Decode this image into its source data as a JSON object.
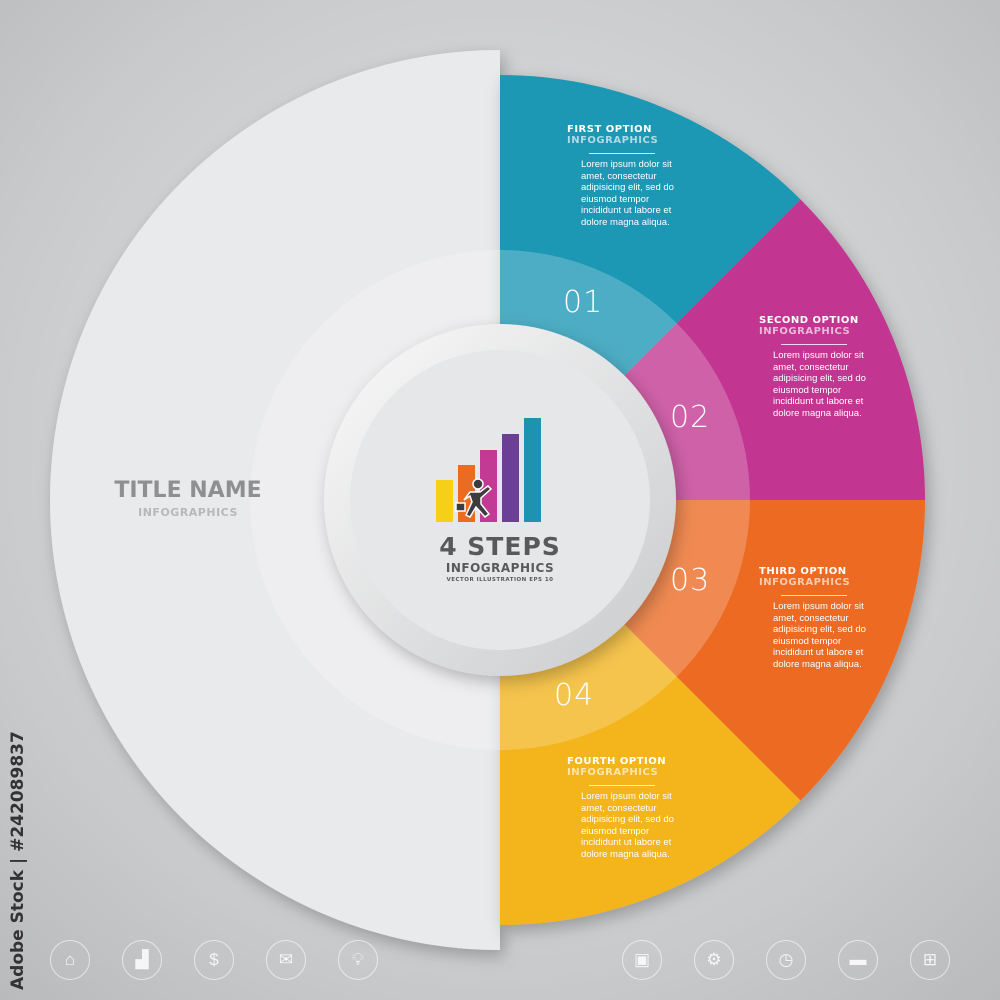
{
  "title": {
    "name": "TITLE NAME",
    "subtitle": "INFOGRAPHICS"
  },
  "center": {
    "heading": "4 STEPS",
    "subheading": "INFOGRAPHICS",
    "caption": "VECTOR ILLUSTRATION EPS 10",
    "bar_colors": [
      "#f5d018",
      "#ea6b24",
      "#c23a93",
      "#6b3f96",
      "#1e93b0"
    ]
  },
  "options": [
    {
      "number": "01",
      "title": "FIRST OPTION",
      "subtitle": "INFOGRAPHICS",
      "body": "Lorem ipsum dolor sit amet, consectetur adipisicing elit, sed do eiusmod tempor incididunt ut labore et dolore magna aliqua.",
      "color": "#1e97b4"
    },
    {
      "number": "02",
      "title": "SECOND OPTION",
      "subtitle": "INFOGRAPHICS",
      "body": "Lorem ipsum dolor sit amet, consectetur adipisicing elit, sed do eiusmod tempor incididunt ut labore et dolore magna aliqua.",
      "color": "#c23590"
    },
    {
      "number": "03",
      "title": "THIRD OPTION",
      "subtitle": "INFOGRAPHICS",
      "body": "Lorem ipsum dolor sit amet, consectetur adipisicing elit, sed do eiusmod tempor incididunt ut labore et dolore magna aliqua.",
      "color": "#ec6a23"
    },
    {
      "number": "04",
      "title": "FOURTH OPTION",
      "subtitle": "INFOGRAPHICS",
      "body": "Lorem ipsum dolor sit amet, consectetur adipisicing elit, sed do eiusmod tempor incididunt ut labore et dolore magna aliqua.",
      "color": "#f3b41c"
    }
  ],
  "icons": [
    "home-icon",
    "bar-chart-icon",
    "money-hand-icon",
    "mail-icon",
    "lightbulb-icon",
    "cash-icon",
    "gears-icon",
    "clock-icon",
    "chat-icon",
    "hierarchy-icon"
  ],
  "watermark": "Adobe Stock | #242089837"
}
